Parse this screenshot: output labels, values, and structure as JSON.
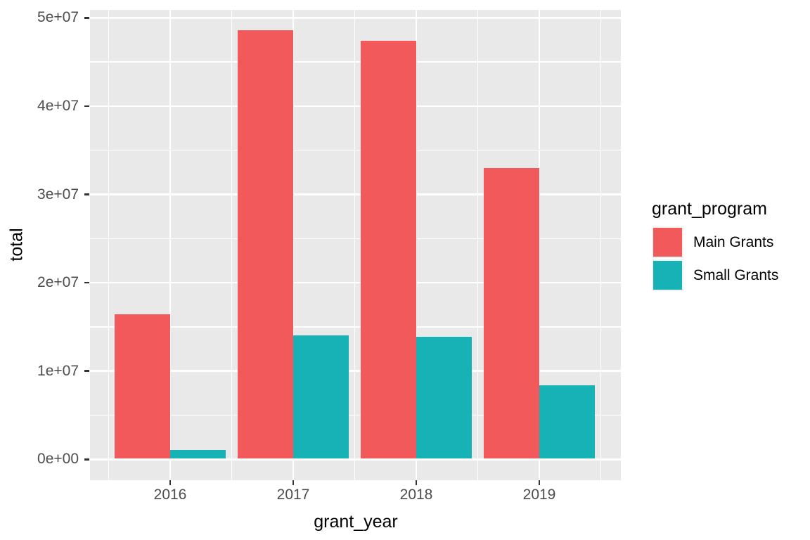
{
  "chart_data": {
    "type": "bar",
    "mode": "grouped",
    "title": "",
    "xlabel": "grant_year",
    "ylabel": "total",
    "categories": [
      "2016",
      "2017",
      "2018",
      "2019"
    ],
    "series": [
      {
        "name": "Main Grants",
        "color": "#F2595B",
        "values": [
          16300000,
          48500000,
          47300000,
          32900000
        ]
      },
      {
        "name": "Small Grants",
        "color": "#17B2B6",
        "values": [
          980000,
          13900000,
          13800000,
          8300000
        ]
      }
    ],
    "y_ticks": [
      {
        "value": 0,
        "label": "0e+00"
      },
      {
        "value": 10000000,
        "label": "1e+07"
      },
      {
        "value": 20000000,
        "label": "2e+07"
      },
      {
        "value": 30000000,
        "label": "3e+07"
      },
      {
        "value": 40000000,
        "label": "4e+07"
      },
      {
        "value": 50000000,
        "label": "5e+07"
      }
    ],
    "y_minor_ticks": [
      5000000,
      15000000,
      25000000,
      35000000,
      45000000
    ],
    "ylim": [
      -2400000,
      50900000
    ],
    "legend": {
      "title": "grant_program",
      "position": "right"
    },
    "grid": {
      "major": true,
      "minor": true
    },
    "style": {
      "figure_background": "#FFFFFF",
      "panel_background": "#E9E9E9",
      "grid_color": "#FFFFFF",
      "tick_color": "#333333",
      "tick_label_color": "#4D4D4D",
      "axis_title_color": "#000000",
      "legend_key_background": "#F2F2F2"
    }
  }
}
